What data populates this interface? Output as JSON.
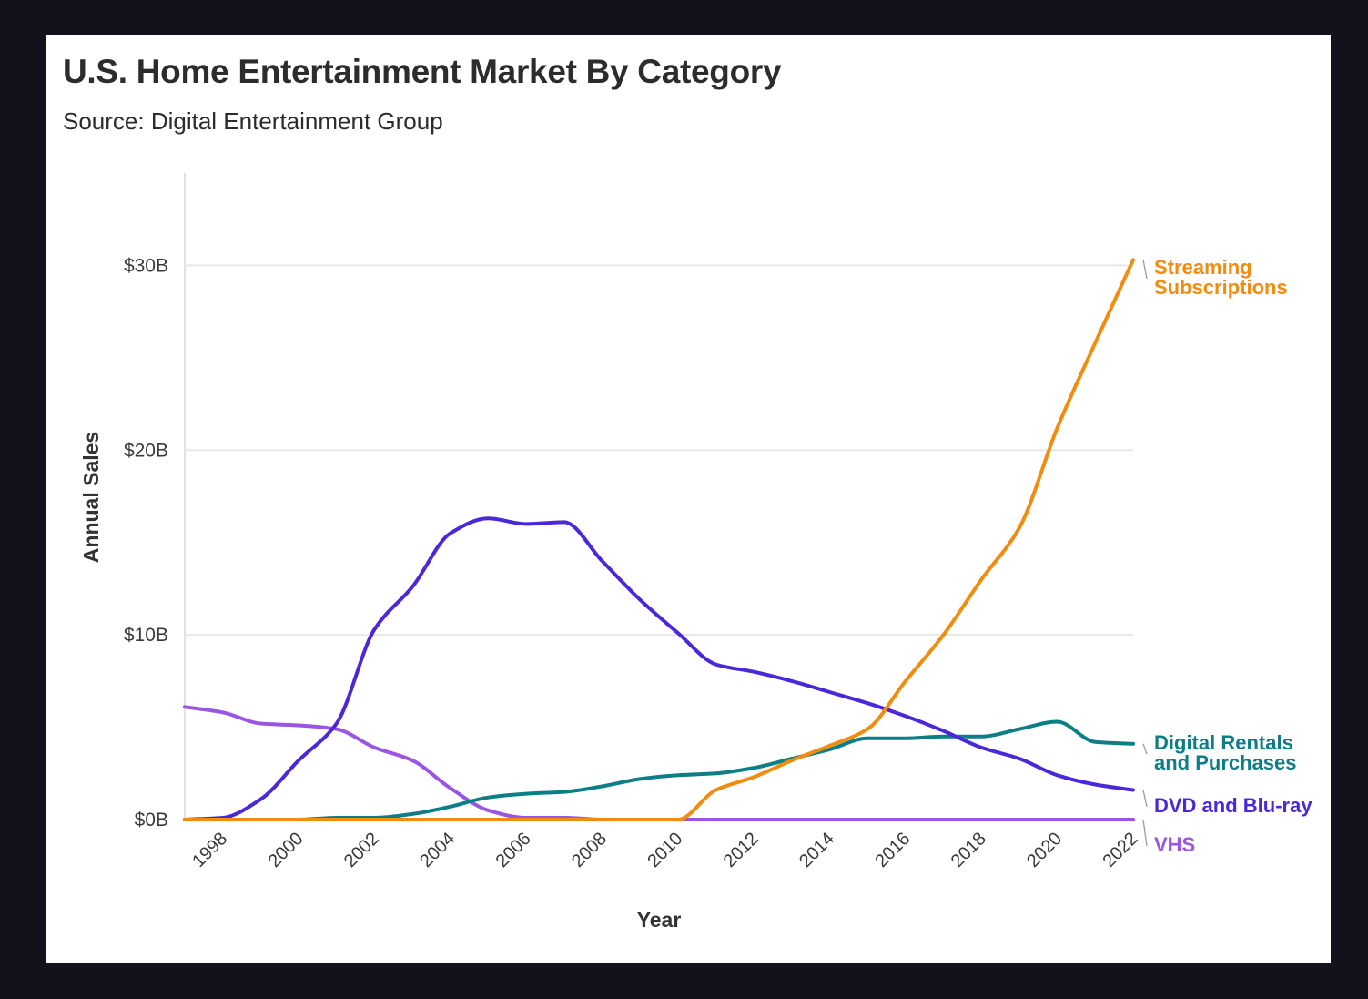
{
  "chart_data": {
    "type": "line",
    "title": "U.S. Home Entertainment Market By Category",
    "subtitle": "Source: Digital Entertainment Group",
    "xlabel": "Year",
    "ylabel": "Annual Sales",
    "ylim": [
      0,
      35
    ],
    "xlim": [
      1997,
      2022
    ],
    "grid": true,
    "legend": "direct labels at right end of lines",
    "y_ticks": [
      {
        "value": 0,
        "label": "$0B"
      },
      {
        "value": 10,
        "label": "$10B"
      },
      {
        "value": 20,
        "label": "$20B"
      },
      {
        "value": 30,
        "label": "$30B"
      }
    ],
    "x_ticks": [
      "1998",
      "2000",
      "2002",
      "2004",
      "2006",
      "2008",
      "2010",
      "2012",
      "2014",
      "2016",
      "2018",
      "2020",
      "2022"
    ],
    "x": [
      1997,
      1998,
      1999,
      2000,
      2001,
      2002,
      2003,
      2004,
      2005,
      2006,
      2007,
      2008,
      2009,
      2010,
      2011,
      2012,
      2013,
      2014,
      2015,
      2016,
      2017,
      2018,
      2019,
      2020,
      2021,
      2022
    ],
    "series": [
      {
        "key": "streaming",
        "name_lines": [
          "Streaming",
          "Subscriptions"
        ],
        "color": "#f28c0f",
        "values": [
          0,
          0,
          0,
          0,
          0,
          0,
          0,
          0,
          0,
          0,
          0,
          0,
          0,
          0,
          1.6,
          2.3,
          3.2,
          4.0,
          4.9,
          7.5,
          10.0,
          13.0,
          15.8,
          21.2,
          25.8,
          30.3
        ]
      },
      {
        "key": "digital",
        "name_lines": [
          "Digital Rentals",
          "and Purchases"
        ],
        "color": "#0c7f86",
        "values": [
          0,
          0,
          0,
          0,
          0.1,
          0.1,
          0.3,
          0.7,
          1.2,
          1.4,
          1.5,
          1.8,
          2.2,
          2.4,
          2.5,
          2.8,
          3.3,
          3.8,
          4.4,
          4.4,
          4.5,
          4.5,
          4.9,
          5.3,
          4.2,
          4.1
        ]
      },
      {
        "key": "dvd",
        "name_lines": [
          "DVD and Blu-ray"
        ],
        "color": "#4a28d9",
        "values": [
          0,
          0.1,
          1.1,
          3.2,
          5.2,
          10.3,
          12.6,
          15.5,
          16.3,
          16.0,
          16.1,
          14.0,
          11.9,
          10.1,
          8.4,
          8.0,
          7.5,
          6.9,
          6.3,
          5.6,
          4.8,
          3.9,
          3.3,
          2.4,
          1.9,
          1.6
        ]
      },
      {
        "key": "vhs",
        "name_lines": [
          "VHS"
        ],
        "color": "#9a55e3",
        "values": [
          6.1,
          5.8,
          5.2,
          5.1,
          4.9,
          3.9,
          3.2,
          1.7,
          0.5,
          0.1,
          0.1,
          0,
          0,
          0,
          0,
          0,
          0,
          0,
          0,
          0,
          0,
          0,
          0,
          0,
          0,
          0
        ]
      }
    ]
  }
}
